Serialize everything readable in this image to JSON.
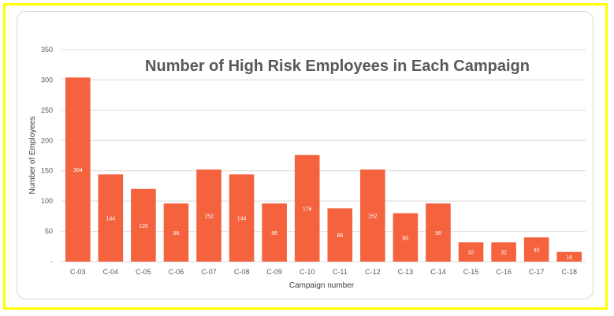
{
  "chart_data": {
    "type": "bar",
    "title": "Number of High Risk Employees in Each Campaign",
    "xlabel": "Campaign number",
    "ylabel": "Number of Employees",
    "ylim": [
      0,
      350
    ],
    "yticks": [
      0,
      50,
      100,
      150,
      200,
      250,
      300,
      350
    ],
    "categories": [
      "C-03",
      "C-04",
      "C-05",
      "C-06",
      "C-07",
      "C-08",
      "C-09",
      "C-10",
      "C-11",
      "C-12",
      "C-13",
      "C-14",
      "C-15",
      "C-16",
      "C-17",
      "C-18"
    ],
    "values": [
      304,
      144,
      120,
      96,
      152,
      144,
      96,
      176,
      88,
      152,
      80,
      96,
      32,
      32,
      40,
      16
    ],
    "data_labels": [
      "304",
      "144",
      "120",
      "96",
      "152",
      "144",
      "96",
      "176",
      "88",
      "152",
      "80",
      "96",
      "32",
      "32",
      "40",
      "16"
    ],
    "grid": true,
    "legend": "none",
    "bar_color": "#f4623e",
    "frame_color": "#ffff00"
  }
}
